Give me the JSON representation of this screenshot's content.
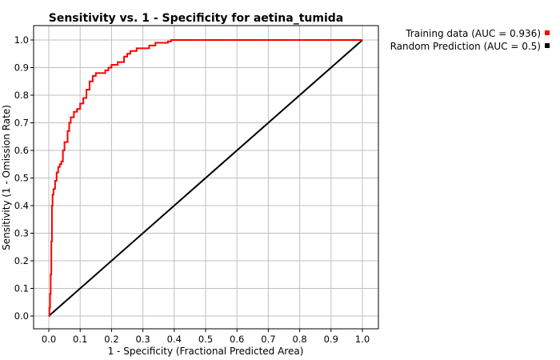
{
  "chart_data": {
    "type": "line",
    "title": "Sensitivity vs. 1 - Specificity for aetina_tumida",
    "xlabel": "1 - Specificity  (Fractional Predicted Area)",
    "ylabel": "Sensitivity  (1 - Omission Rate)",
    "xlim": [
      0,
      1
    ],
    "ylim": [
      0,
      1
    ],
    "grid": true,
    "x_ticks": [
      "0.0",
      "0.1",
      "0.2",
      "0.3",
      "0.4",
      "0.5",
      "0.6",
      "0.7",
      "0.8",
      "0.9",
      "1.0"
    ],
    "y_ticks": [
      "0.0",
      "0.1",
      "0.2",
      "0.3",
      "0.4",
      "0.5",
      "0.6",
      "0.7",
      "0.8",
      "0.9",
      "1.0"
    ],
    "legend_position": "top-right-outside",
    "series": [
      {
        "name": "Training data (AUC = 0.936)",
        "color": "#ff0000",
        "x": [
          0.0,
          0.002,
          0.004,
          0.006,
          0.008,
          0.01,
          0.012,
          0.015,
          0.02,
          0.025,
          0.03,
          0.035,
          0.04,
          0.045,
          0.05,
          0.06,
          0.065,
          0.07,
          0.08,
          0.09,
          0.1,
          0.11,
          0.12,
          0.13,
          0.14,
          0.15,
          0.16,
          0.18,
          0.19,
          0.2,
          0.22,
          0.24,
          0.25,
          0.26,
          0.28,
          0.3,
          0.32,
          0.34,
          0.35,
          0.38,
          0.39,
          0.5,
          0.7,
          1.0
        ],
        "y": [
          0.0,
          0.03,
          0.08,
          0.15,
          0.27,
          0.4,
          0.44,
          0.46,
          0.49,
          0.52,
          0.54,
          0.55,
          0.56,
          0.6,
          0.63,
          0.67,
          0.7,
          0.72,
          0.74,
          0.75,
          0.77,
          0.79,
          0.82,
          0.85,
          0.87,
          0.88,
          0.88,
          0.89,
          0.9,
          0.91,
          0.92,
          0.94,
          0.95,
          0.96,
          0.97,
          0.97,
          0.98,
          0.99,
          0.99,
          0.995,
          1.0,
          1.0,
          1.0,
          1.0
        ]
      },
      {
        "name": "Random Prediction (AUC = 0.5)",
        "color": "#000000",
        "x": [
          0,
          1
        ],
        "y": [
          0,
          1
        ]
      }
    ]
  }
}
